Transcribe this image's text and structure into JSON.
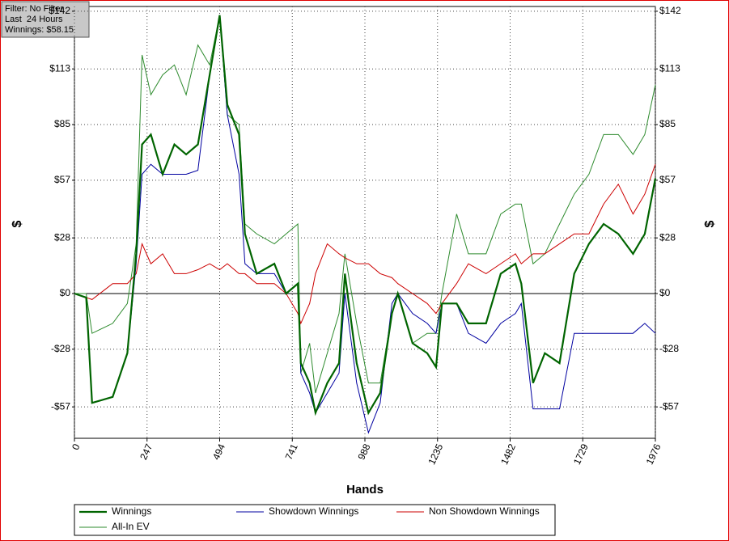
{
  "chart_data": {
    "type": "line",
    "annotations": [
      "Filter: No Filter",
      "Last  24 Hours",
      "Winnings: $58.15"
    ],
    "xlabel": "Hands",
    "ylabel": "$",
    "x": [
      0,
      40,
      60,
      130,
      180,
      210,
      230,
      260,
      300,
      340,
      380,
      420,
      460,
      494,
      520,
      560,
      580,
      620,
      680,
      720,
      760,
      770,
      800,
      820,
      860,
      900,
      920,
      960,
      1000,
      1040,
      1080,
      1100,
      1150,
      1200,
      1230,
      1250,
      1300,
      1340,
      1400,
      1450,
      1500,
      1520,
      1560,
      1600,
      1650,
      1700,
      1750,
      1800,
      1850,
      1900,
      1940,
      1976
    ],
    "series": [
      {
        "name": "Winnings",
        "color": "#006400",
        "width": 2.2,
        "values": [
          0,
          -2,
          -55,
          -52,
          -30,
          20,
          75,
          80,
          60,
          75,
          70,
          75,
          110,
          140,
          95,
          80,
          30,
          10,
          15,
          0,
          5,
          -35,
          -45,
          -60,
          -45,
          -35,
          10,
          -35,
          -60,
          -50,
          -10,
          0,
          -25,
          -30,
          -37,
          -5,
          -5,
          -15,
          -15,
          10,
          15,
          5,
          -45,
          -30,
          -35,
          10,
          25,
          35,
          30,
          20,
          30,
          58
        ]
      },
      {
        "name": "Showdown Winnings",
        "color": "#0000a0",
        "width": 1,
        "values": [
          0,
          -2,
          -55,
          -52,
          -30,
          15,
          60,
          65,
          60,
          60,
          60,
          62,
          110,
          140,
          90,
          60,
          15,
          10,
          10,
          0,
          5,
          -40,
          -50,
          -60,
          -50,
          -40,
          0,
          -45,
          -70,
          -55,
          -5,
          0,
          -10,
          -15,
          -20,
          -5,
          -5,
          -20,
          -25,
          -15,
          -10,
          -5,
          -58,
          -58,
          -58,
          -20,
          -20,
          -20,
          -20,
          -20,
          -15,
          -20
        ]
      },
      {
        "name": "Non Showdown Winnings",
        "color": "#cc0000",
        "width": 1,
        "values": [
          0,
          -2,
          -3,
          5,
          5,
          10,
          25,
          15,
          20,
          10,
          10,
          12,
          15,
          12,
          15,
          10,
          10,
          5,
          5,
          0,
          -10,
          -15,
          -5,
          10,
          25,
          20,
          18,
          15,
          15,
          10,
          8,
          5,
          0,
          -5,
          -10,
          -5,
          5,
          15,
          10,
          15,
          20,
          15,
          20,
          20,
          25,
          30,
          30,
          45,
          55,
          40,
          50,
          65
        ]
      },
      {
        "name": "All-In EV",
        "color": "#2e8b2e",
        "width": 1,
        "values": [
          0,
          0,
          -20,
          -15,
          -5,
          25,
          120,
          100,
          110,
          115,
          100,
          125,
          115,
          140,
          90,
          85,
          35,
          30,
          25,
          30,
          35,
          -40,
          -25,
          -50,
          -30,
          -10,
          20,
          -15,
          -45,
          -45,
          -10,
          0,
          -25,
          -20,
          -20,
          0,
          40,
          20,
          20,
          40,
          45,
          45,
          15,
          20,
          35,
          50,
          60,
          80,
          80,
          70,
          80,
          105
        ]
      }
    ],
    "xlim": [
      0,
      1976
    ],
    "xticks": [
      0,
      247,
      494,
      741,
      988,
      1235,
      1482,
      1729,
      1976
    ],
    "ylim": [
      -72.8,
      144.4
    ],
    "yticks": [
      {
        "value": 142,
        "label": "$142"
      },
      {
        "value": 113,
        "label": "$113"
      },
      {
        "value": 85,
        "label": "$85"
      },
      {
        "value": 57,
        "label": "$57"
      },
      {
        "value": 28,
        "label": "$28"
      },
      {
        "value": 0,
        "label": "$0"
      },
      {
        "value": -28,
        "label": "-$28"
      },
      {
        "value": -57,
        "label": "-$57"
      }
    ],
    "grid": true
  }
}
